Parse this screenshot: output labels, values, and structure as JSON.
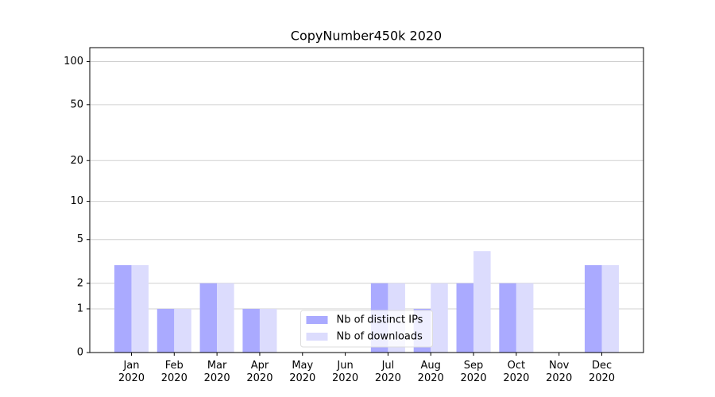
{
  "chart_data": {
    "type": "bar",
    "title": "CopyNumber450k 2020",
    "categories": [
      "Jan 2020",
      "Feb 2020",
      "Mar 2020",
      "Apr 2020",
      "May 2020",
      "Jun 2020",
      "Jul 2020",
      "Aug 2020",
      "Sep 2020",
      "Oct 2020",
      "Nov 2020",
      "Dec 2020"
    ],
    "series": [
      {
        "name": "Nb of distinct IPs",
        "color": "#aaaaff",
        "values": [
          3,
          1,
          2,
          1,
          0,
          0,
          2,
          1,
          2,
          2,
          0,
          3
        ]
      },
      {
        "name": "Nb of downloads",
        "color": "#dcdcfd",
        "values": [
          3,
          1,
          2,
          1,
          0,
          0,
          2,
          2,
          4,
          2,
          0,
          3
        ]
      }
    ],
    "yscale": "log1p",
    "ylim": [
      0,
      125
    ],
    "yticks": [
      0,
      1,
      2,
      5,
      10,
      20,
      50,
      100
    ],
    "grid": true,
    "legend": "lower center"
  }
}
